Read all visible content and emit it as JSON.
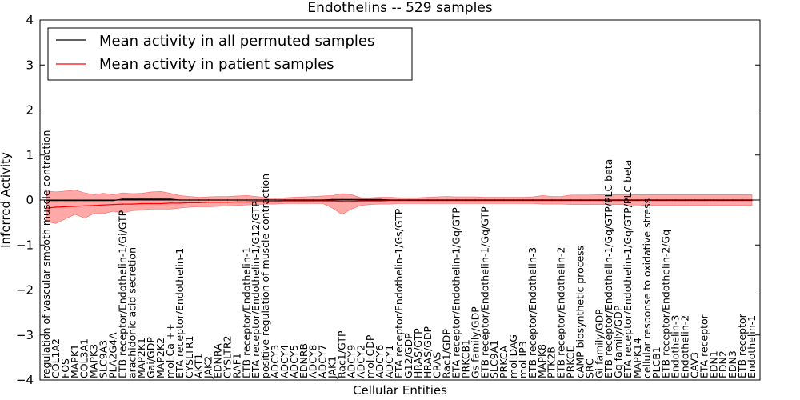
{
  "chart_data": {
    "type": "line",
    "title": "Endothelins -- 529 samples",
    "xlabel": "Cellular Entities",
    "ylabel": "Inferred Activity",
    "ylim": [
      -4,
      4
    ],
    "yticks": [
      -4,
      -3,
      -2,
      -1,
      0,
      1,
      2,
      3,
      4
    ],
    "ytick_labels": [
      "−4",
      "−3",
      "−2",
      "−1",
      "0",
      "1",
      "2",
      "3",
      "4"
    ],
    "legend": {
      "placement": "top-left",
      "entries": [
        {
          "label": "Mean activity in all permuted samples",
          "color": "#000000"
        },
        {
          "label": "Mean activity in patient samples",
          "color": "#ff0000"
        }
      ]
    },
    "band_color": "#ff9999",
    "categories": [
      "regulation of vascular smooth muscle contraction",
      "COL1A2",
      "FOS",
      "MAPK1",
      "COL3A1",
      "MAPK3",
      "SLC9A3",
      "PLA2G4A",
      "ETB receptor/Endothelin-1/Gi/GTP",
      "arachidonic acid secretion",
      "MAP2K1",
      "Gai/GDP",
      "MAP2K2",
      "mol:Ca ++",
      "ETA receptor/Endothelin-1",
      "CYSLTR1",
      "AKT1",
      "JAK2",
      "EDNRA",
      "CYSLTR2",
      "RAF1",
      "ETB receptor/Endothelin-1",
      "ETA receptor/Endothelin-1/G12/GTP",
      "positive regulation of muscle contraction",
      "ADCY3",
      "ADCY4",
      "ADCY5",
      "EDNRB",
      "ADCY8",
      "ADCY7",
      "JAK1",
      "Rac1/GTP",
      "ADCY9",
      "ADCY2",
      "mol:GDP",
      "ADCY6",
      "ADCY1",
      "ETA receptor/Endothelin-1/Gs/GTP",
      "G12/GDP",
      "HRAS/GTP",
      "HRAS/GDP",
      "CRAS",
      "Rac1/GDP",
      "ETA receptor/Endothelin-1/Gq/GTP",
      "PRKCB1",
      "Gs family/GDP",
      "ETB receptor/Endothelin-1/Gq/GTP",
      "SLC9A1",
      "PRKCA",
      "mol:DAG",
      "mol:IP3",
      "ETB receptor/Endothelin-3",
      "MAPK8",
      "PTK2B",
      "ETB receptor/Endothelin-2",
      "PRKCE",
      "cAMP biosynthetic process",
      "SRC",
      "Gi family/GDP",
      "ETB receptor/Endothelin-1/Gq/GTP/PLC beta",
      "Gq family/GDP",
      "ETA receptor/Endothelin-1/Gq/GTP/PLC beta",
      "MAPK14",
      "cellular response to oxidative stress",
      "PLCB1",
      "ETB receptor/Endothelin-2/Gq",
      "Endothelin-3",
      "Endothelin-2",
      "CAV3",
      "ETA receptor",
      "EDN1",
      "EDN2",
      "EDN3",
      "ETB receptor",
      "Endothelin-1"
    ],
    "series": [
      {
        "name": "Mean activity in all permuted samples",
        "color": "#000000",
        "values": [
          -0.01,
          -0.01,
          -0.01,
          -0.01,
          -0.01,
          -0.01,
          -0.01,
          -0.01,
          0.02,
          0.02,
          0.02,
          0.02,
          0.02,
          0.02,
          0.0,
          0.0,
          0.0,
          0.0,
          0.0,
          0.0,
          0.0,
          0.0,
          0.0,
          0.0,
          0.0,
          0.0,
          0.0,
          0.0,
          0.0,
          0.0,
          0.01,
          0.01,
          0.01,
          0.01,
          0.01,
          0.01,
          0.0,
          0.0,
          0.0,
          0.0,
          0.0,
          0.0,
          0.0,
          0.0,
          0.0,
          0.0,
          0.0,
          0.0,
          0.0,
          0.0,
          0.0,
          0.0,
          0.0,
          0.0,
          0.0,
          0.0,
          0.0,
          0.0,
          0.0,
          0.0,
          0.0,
          0.0,
          0.0,
          0.0,
          0.0,
          0.0,
          0.0,
          0.0,
          0.0,
          0.0,
          0.0,
          0.0,
          0.0,
          0.0,
          0.0
        ]
      },
      {
        "name": "Mean activity in patient samples",
        "color": "#ff0000",
        "values": [
          -0.18,
          -0.16,
          -0.15,
          -0.14,
          -0.13,
          -0.12,
          -0.11,
          -0.1,
          -0.09,
          -0.09,
          -0.08,
          -0.08,
          -0.08,
          -0.07,
          -0.07,
          -0.06,
          -0.06,
          -0.05,
          -0.05,
          -0.05,
          -0.04,
          -0.04,
          -0.03,
          -0.03,
          -0.03,
          -0.02,
          -0.02,
          -0.02,
          -0.02,
          -0.02,
          -0.02,
          -0.03,
          -0.03,
          -0.02,
          -0.02,
          -0.02,
          -0.01,
          -0.01,
          -0.01,
          -0.01,
          -0.01,
          -0.01,
          -0.01,
          -0.01,
          -0.01,
          -0.01,
          -0.01,
          -0.01,
          -0.01,
          -0.01,
          -0.01,
          -0.01,
          -0.01,
          -0.01,
          -0.01,
          -0.01,
          -0.01,
          -0.01,
          -0.01,
          -0.01,
          -0.01,
          -0.01,
          -0.01,
          -0.01,
          -0.01,
          -0.01,
          -0.01,
          -0.01,
          -0.01,
          -0.01,
          -0.01,
          -0.01,
          -0.01,
          -0.01,
          -0.01
        ]
      },
      {
        "name": "Upper band (patient)",
        "color": "#ff9999",
        "values": [
          0.2,
          0.18,
          0.2,
          0.22,
          0.16,
          0.12,
          0.15,
          0.12,
          0.16,
          0.14,
          0.15,
          0.18,
          0.19,
          0.15,
          0.1,
          0.08,
          0.06,
          0.07,
          0.08,
          0.08,
          0.09,
          0.1,
          0.08,
          0.05,
          0.04,
          0.05,
          0.06,
          0.07,
          0.08,
          0.09,
          0.1,
          0.14,
          0.12,
          0.05,
          0.05,
          0.06,
          0.06,
          0.05,
          0.05,
          0.05,
          0.06,
          0.07,
          0.08,
          0.07,
          0.07,
          0.07,
          0.06,
          0.06,
          0.06,
          0.06,
          0.06,
          0.07,
          0.1,
          0.08,
          0.08,
          0.11,
          0.11,
          0.11,
          0.12,
          0.12,
          0.12,
          0.12,
          0.12,
          0.12,
          0.12,
          0.12,
          0.12,
          0.12,
          0.12,
          0.12,
          0.12,
          0.12,
          0.12,
          0.12,
          0.12
        ]
      },
      {
        "name": "Lower band (patient)",
        "color": "#ff9999",
        "values": [
          -0.48,
          -0.52,
          -0.42,
          -0.32,
          -0.4,
          -0.3,
          -0.3,
          -0.25,
          -0.28,
          -0.24,
          -0.22,
          -0.2,
          -0.2,
          -0.2,
          -0.18,
          -0.16,
          -0.15,
          -0.15,
          -0.14,
          -0.13,
          -0.12,
          -0.11,
          -0.1,
          -0.09,
          -0.09,
          -0.08,
          -0.08,
          -0.08,
          -0.08,
          -0.08,
          -0.18,
          -0.32,
          -0.2,
          -0.12,
          -0.1,
          -0.09,
          -0.09,
          -0.08,
          -0.08,
          -0.08,
          -0.08,
          -0.08,
          -0.08,
          -0.08,
          -0.08,
          -0.08,
          -0.08,
          -0.08,
          -0.08,
          -0.08,
          -0.08,
          -0.08,
          -0.09,
          -0.09,
          -0.09,
          -0.1,
          -0.1,
          -0.1,
          -0.1,
          -0.1,
          -0.1,
          -0.11,
          -0.11,
          -0.12,
          -0.12,
          -0.12,
          -0.12,
          -0.12,
          -0.12,
          -0.12,
          -0.12,
          -0.12,
          -0.12,
          -0.12,
          -0.12
        ]
      }
    ]
  }
}
